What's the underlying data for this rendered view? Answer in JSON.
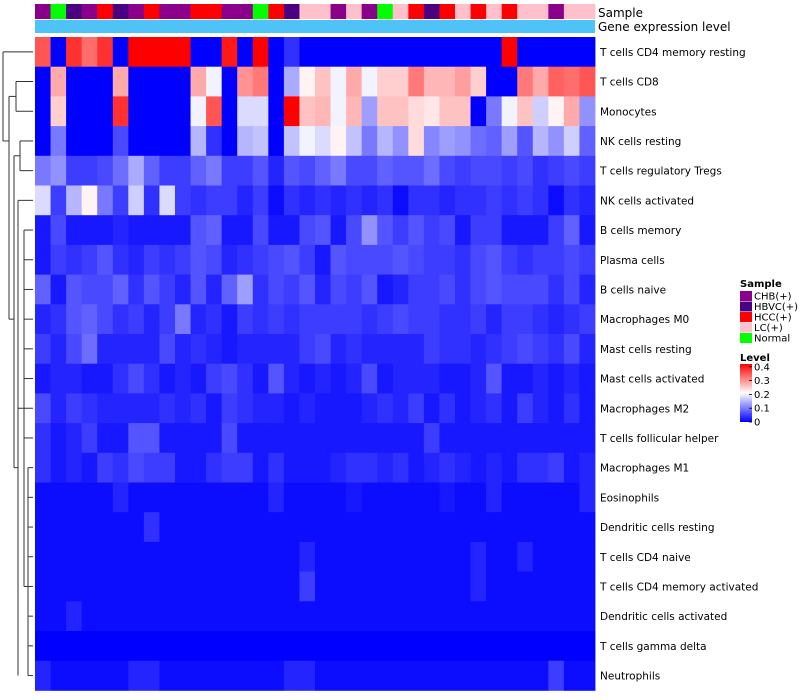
{
  "chart_data": {
    "type": "heatmap",
    "annotation_labels": [
      "Sample",
      "Gene expression level"
    ],
    "sample_legend": {
      "title": "Sample",
      "entries": [
        {
          "label": "CHB(+)",
          "color": "#8b008b"
        },
        {
          "label": "HBVC(+)",
          "color": "#4b0082"
        },
        {
          "label": "HCC(+)",
          "color": "#ff0000"
        },
        {
          "label": "LC(+)",
          "color": "#ffc0cb"
        },
        {
          "label": "Normal",
          "color": "#00ff00"
        }
      ]
    },
    "level_legend": {
      "title": "Level",
      "ticks": [
        "0.4",
        "0.3",
        "0.2",
        "0.1",
        "0"
      ],
      "tick_values": [
        0.4,
        0.3,
        0.2,
        0.1,
        0
      ],
      "range": [
        0,
        0.42
      ],
      "colors": {
        "low": "#0000ff",
        "mid": "#ffffff",
        "high": "#ff0000"
      }
    },
    "expression_bar_color": "#4fc3f7",
    "sample_groups": [
      "CHB(+)",
      "Normal",
      "HBVC(+)",
      "CHB(+)",
      "HCC(+)",
      "HBVC(+)",
      "CHB(+)",
      "HCC(+)",
      "CHB(+)",
      "CHB(+)",
      "HCC(+)",
      "HCC(+)",
      "CHB(+)",
      "CHB(+)",
      "Normal",
      "HCC(+)",
      "HBVC(+)",
      "LC(+)",
      "LC(+)",
      "CHB(+)",
      "LC(+)",
      "CHB(+)",
      "Normal",
      "LC(+)",
      "HCC(+)",
      "HBVC(+)",
      "HCC(+)",
      "LC(+)",
      "HCC(+)",
      "LC(+)",
      "HCC(+)",
      "LC(+)",
      "LC(+)",
      "CHB(+)",
      "LC(+)",
      "LC(+)"
    ],
    "rows": [
      "T cells CD4 memory resting",
      "T cells CD8",
      "Monocytes",
      "NK cells resting",
      "T cells regulatory  Tregs",
      "NK cells activated",
      "B cells memory",
      "Plasma cells",
      "B cells naive",
      "Macrophages M0",
      "Mast cells resting",
      "Mast cells activated",
      "Macrophages M2",
      "T cells follicular helper",
      "Macrophages M1",
      "Eosinophils",
      "Dendritic cells resting",
      "T cells CD4 naive",
      "T cells CD4 memory activated",
      "Dendritic cells activated",
      "T cells gamma delta",
      "Neutrophils"
    ],
    "values": [
      [
        0.35,
        0.0,
        0.38,
        0.33,
        0.38,
        0.0,
        0.42,
        0.42,
        0.42,
        0.42,
        0.0,
        0.0,
        0.4,
        0.0,
        0.42,
        0.0,
        0.04,
        0.0,
        0.0,
        0.0,
        0.0,
        0.0,
        0.0,
        0.0,
        0.0,
        0.0,
        0.0,
        0.0,
        0.0,
        0.0,
        0.42,
        0.0,
        0.0,
        0.0,
        0.0,
        0.0
      ],
      [
        0.0,
        0.28,
        0.0,
        0.0,
        0.0,
        0.28,
        0.0,
        0.0,
        0.0,
        0.0,
        0.28,
        0.2,
        0.0,
        0.3,
        0.32,
        0.0,
        0.14,
        0.22,
        0.26,
        0.2,
        0.28,
        0.2,
        0.25,
        0.25,
        0.32,
        0.27,
        0.27,
        0.29,
        0.25,
        0.0,
        0.0,
        0.32,
        0.28,
        0.34,
        0.33,
        0.35
      ],
      [
        0.0,
        0.25,
        0.0,
        0.0,
        0.0,
        0.38,
        0.0,
        0.0,
        0.0,
        0.0,
        0.2,
        0.35,
        0.0,
        0.18,
        0.18,
        0.0,
        0.42,
        0.26,
        0.27,
        0.2,
        0.27,
        0.13,
        0.26,
        0.26,
        0.24,
        0.23,
        0.26,
        0.26,
        0.0,
        0.1,
        0.2,
        0.26,
        0.17,
        0.22,
        0.28,
        0.12
      ],
      [
        0.0,
        0.1,
        0.0,
        0.0,
        0.0,
        0.06,
        0.0,
        0.0,
        0.0,
        0.0,
        0.15,
        0.04,
        0.0,
        0.15,
        0.16,
        0.0,
        0.16,
        0.2,
        0.18,
        0.22,
        0.16,
        0.1,
        0.15,
        0.12,
        0.24,
        0.11,
        0.13,
        0.12,
        0.09,
        0.08,
        0.13,
        0.07,
        0.15,
        0.12,
        0.17,
        0.08
      ],
      [
        0.1,
        0.12,
        0.05,
        0.05,
        0.06,
        0.09,
        0.14,
        0.08,
        0.05,
        0.05,
        0.08,
        0.1,
        0.05,
        0.05,
        0.07,
        0.03,
        0.07,
        0.06,
        0.08,
        0.1,
        0.06,
        0.06,
        0.08,
        0.07,
        0.07,
        0.09,
        0.06,
        0.05,
        0.06,
        0.06,
        0.05,
        0.06,
        0.04,
        0.05,
        0.06,
        0.05
      ],
      [
        0.18,
        0.05,
        0.15,
        0.22,
        0.1,
        0.05,
        0.17,
        0.04,
        0.18,
        0.05,
        0.04,
        0.05,
        0.05,
        0.03,
        0.05,
        0.01,
        0.04,
        0.03,
        0.04,
        0.03,
        0.04,
        0.03,
        0.04,
        0.01,
        0.04,
        0.04,
        0.03,
        0.04,
        0.04,
        0.05,
        0.04,
        0.05,
        0.04,
        0.01,
        0.04,
        0.03
      ],
      [
        0.02,
        0.06,
        0.02,
        0.02,
        0.02,
        0.03,
        0.02,
        0.02,
        0.02,
        0.02,
        0.07,
        0.08,
        0.02,
        0.02,
        0.06,
        0.02,
        0.02,
        0.06,
        0.07,
        0.02,
        0.06,
        0.12,
        0.07,
        0.05,
        0.07,
        0.05,
        0.06,
        0.02,
        0.05,
        0.05,
        0.02,
        0.02,
        0.02,
        0.05,
        0.08,
        0.02
      ],
      [
        0.02,
        0.05,
        0.04,
        0.05,
        0.07,
        0.04,
        0.03,
        0.05,
        0.04,
        0.05,
        0.07,
        0.06,
        0.03,
        0.04,
        0.05,
        0.06,
        0.07,
        0.05,
        0.02,
        0.07,
        0.06,
        0.06,
        0.06,
        0.07,
        0.06,
        0.05,
        0.05,
        0.04,
        0.06,
        0.07,
        0.05,
        0.04,
        0.05,
        0.05,
        0.06,
        0.05
      ],
      [
        0.08,
        0.02,
        0.07,
        0.06,
        0.06,
        0.08,
        0.04,
        0.07,
        0.05,
        0.03,
        0.07,
        0.03,
        0.08,
        0.13,
        0.04,
        0.06,
        0.05,
        0.07,
        0.03,
        0.06,
        0.05,
        0.07,
        0.02,
        0.03,
        0.05,
        0.05,
        0.06,
        0.04,
        0.06,
        0.07,
        0.06,
        0.06,
        0.06,
        0.04,
        0.06,
        0.03
      ],
      [
        0.03,
        0.04,
        0.07,
        0.08,
        0.06,
        0.04,
        0.05,
        0.03,
        0.05,
        0.1,
        0.03,
        0.04,
        0.02,
        0.05,
        0.04,
        0.05,
        0.04,
        0.05,
        0.05,
        0.05,
        0.05,
        0.04,
        0.05,
        0.06,
        0.05,
        0.05,
        0.04,
        0.04,
        0.05,
        0.03,
        0.05,
        0.05,
        0.04,
        0.03,
        0.04,
        0.05
      ],
      [
        0.05,
        0.03,
        0.06,
        0.09,
        0.03,
        0.03,
        0.03,
        0.03,
        0.06,
        0.03,
        0.04,
        0.03,
        0.02,
        0.03,
        0.03,
        0.03,
        0.03,
        0.05,
        0.06,
        0.03,
        0.04,
        0.03,
        0.03,
        0.03,
        0.03,
        0.05,
        0.04,
        0.04,
        0.03,
        0.04,
        0.05,
        0.06,
        0.05,
        0.04,
        0.06,
        0.03
      ],
      [
        0.02,
        0.03,
        0.03,
        0.02,
        0.02,
        0.04,
        0.06,
        0.04,
        0.02,
        0.03,
        0.02,
        0.05,
        0.06,
        0.04,
        0.02,
        0.07,
        0.03,
        0.02,
        0.03,
        0.02,
        0.03,
        0.06,
        0.02,
        0.03,
        0.03,
        0.03,
        0.02,
        0.02,
        0.03,
        0.07,
        0.02,
        0.02,
        0.03,
        0.02,
        0.03,
        0.02
      ],
      [
        0.06,
        0.03,
        0.05,
        0.04,
        0.03,
        0.03,
        0.03,
        0.03,
        0.04,
        0.03,
        0.04,
        0.02,
        0.05,
        0.04,
        0.03,
        0.03,
        0.02,
        0.03,
        0.02,
        0.02,
        0.02,
        0.03,
        0.04,
        0.03,
        0.05,
        0.02,
        0.04,
        0.02,
        0.03,
        0.04,
        0.02,
        0.05,
        0.03,
        0.02,
        0.04,
        0.02
      ],
      [
        0.04,
        0.02,
        0.03,
        0.05,
        0.02,
        0.02,
        0.07,
        0.07,
        0.02,
        0.02,
        0.02,
        0.02,
        0.06,
        0.02,
        0.02,
        0.02,
        0.02,
        0.02,
        0.02,
        0.02,
        0.02,
        0.02,
        0.02,
        0.02,
        0.02,
        0.05,
        0.02,
        0.02,
        0.02,
        0.02,
        0.02,
        0.02,
        0.02,
        0.02,
        0.02,
        0.02
      ],
      [
        0.04,
        0.02,
        0.03,
        0.02,
        0.05,
        0.04,
        0.06,
        0.05,
        0.05,
        0.02,
        0.02,
        0.04,
        0.05,
        0.05,
        0.02,
        0.04,
        0.02,
        0.02,
        0.02,
        0.03,
        0.04,
        0.04,
        0.03,
        0.04,
        0.02,
        0.03,
        0.04,
        0.03,
        0.02,
        0.03,
        0.02,
        0.04,
        0.04,
        0.05,
        0.02,
        0.03
      ],
      [
        0.01,
        0.01,
        0.01,
        0.01,
        0.01,
        0.03,
        0.01,
        0.01,
        0.01,
        0.01,
        0.01,
        0.01,
        0.01,
        0.01,
        0.01,
        0.03,
        0.01,
        0.01,
        0.01,
        0.01,
        0.02,
        0.01,
        0.01,
        0.01,
        0.01,
        0.01,
        0.02,
        0.01,
        0.01,
        0.03,
        0.01,
        0.01,
        0.01,
        0.01,
        0.01,
        0.03
      ],
      [
        0.01,
        0.01,
        0.01,
        0.01,
        0.01,
        0.01,
        0.01,
        0.04,
        0.01,
        0.01,
        0.01,
        0.01,
        0.01,
        0.01,
        0.01,
        0.01,
        0.01,
        0.01,
        0.01,
        0.01,
        0.01,
        0.01,
        0.01,
        0.01,
        0.01,
        0.01,
        0.01,
        0.01,
        0.01,
        0.01,
        0.01,
        0.01,
        0.01,
        0.01,
        0.01,
        0.01
      ],
      [
        0.01,
        0.01,
        0.01,
        0.01,
        0.01,
        0.01,
        0.01,
        0.01,
        0.01,
        0.01,
        0.01,
        0.01,
        0.01,
        0.01,
        0.01,
        0.01,
        0.01,
        0.03,
        0.01,
        0.01,
        0.01,
        0.01,
        0.01,
        0.01,
        0.01,
        0.01,
        0.01,
        0.01,
        0.03,
        0.01,
        0.01,
        0.03,
        0.01,
        0.01,
        0.01,
        0.01
      ],
      [
        0.01,
        0.01,
        0.01,
        0.01,
        0.01,
        0.01,
        0.01,
        0.01,
        0.01,
        0.01,
        0.01,
        0.01,
        0.01,
        0.01,
        0.01,
        0.01,
        0.01,
        0.05,
        0.01,
        0.01,
        0.01,
        0.01,
        0.01,
        0.01,
        0.01,
        0.01,
        0.01,
        0.01,
        0.03,
        0.01,
        0.01,
        0.01,
        0.01,
        0.01,
        0.01,
        0.01
      ],
      [
        0.01,
        0.01,
        0.03,
        0.01,
        0.01,
        0.01,
        0.01,
        0.01,
        0.01,
        0.01,
        0.01,
        0.01,
        0.01,
        0.01,
        0.01,
        0.01,
        0.01,
        0.01,
        0.01,
        0.01,
        0.01,
        0.01,
        0.01,
        0.01,
        0.01,
        0.01,
        0.01,
        0.01,
        0.01,
        0.01,
        0.01,
        0.01,
        0.01,
        0.01,
        0.01,
        0.01
      ],
      [
        0.0,
        0.0,
        0.0,
        0.0,
        0.0,
        0.0,
        0.0,
        0.0,
        0.0,
        0.0,
        0.0,
        0.0,
        0.0,
        0.0,
        0.0,
        0.0,
        0.0,
        0.0,
        0.0,
        0.0,
        0.0,
        0.0,
        0.0,
        0.0,
        0.0,
        0.0,
        0.0,
        0.0,
        0.0,
        0.0,
        0.0,
        0.0,
        0.0,
        0.0,
        0.0,
        0.0
      ],
      [
        0.03,
        0.01,
        0.01,
        0.01,
        0.01,
        0.01,
        0.03,
        0.03,
        0.01,
        0.01,
        0.01,
        0.01,
        0.01,
        0.01,
        0.01,
        0.01,
        0.03,
        0.03,
        0.01,
        0.01,
        0.01,
        0.01,
        0.01,
        0.01,
        0.01,
        0.01,
        0.01,
        0.01,
        0.01,
        0.01,
        0.01,
        0.01,
        0.01,
        0.05,
        0.01,
        0.01
      ]
    ]
  }
}
